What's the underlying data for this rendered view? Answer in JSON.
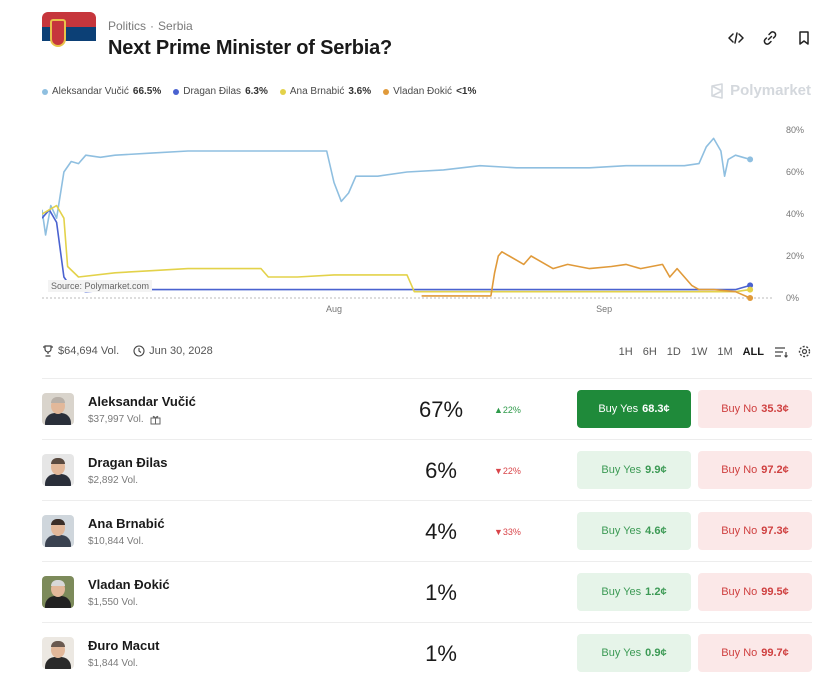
{
  "header": {
    "breadcrumb": [
      "Politics",
      "Serbia"
    ],
    "breadcrumb_separator": "·",
    "title": "Next Prime Minister of Serbia?",
    "icons": [
      "embed-icon",
      "link-icon",
      "bookmark-icon"
    ]
  },
  "legend": [
    {
      "name": "Aleksandar Vučić",
      "pct": "66.5%",
      "color": "#8fbfe0"
    },
    {
      "name": "Dragan Đilas",
      "pct": "6.3%",
      "color": "#4a62d0"
    },
    {
      "name": "Ana Brnabić",
      "pct": "3.6%",
      "color": "#e3d24a"
    },
    {
      "name": "Vladan Đokić",
      "pct": "<1%",
      "color": "#e09a3a"
    }
  ],
  "brand": "Polymarket",
  "chart_data": {
    "type": "line",
    "x_ticks": [
      "Aug",
      "Sep"
    ],
    "y_ticks": [
      "80%",
      "60%",
      "40%",
      "20%",
      "0%"
    ],
    "ylim": [
      0,
      80
    ],
    "source_label": "Source: Polymarket.com",
    "series": [
      {
        "name": "Aleksandar Vučić",
        "color": "#8fbfe0",
        "points": [
          [
            0,
            42
          ],
          [
            0.005,
            30
          ],
          [
            0.012,
            44
          ],
          [
            0.02,
            38
          ],
          [
            0.03,
            60
          ],
          [
            0.04,
            65
          ],
          [
            0.05,
            64
          ],
          [
            0.06,
            68
          ],
          [
            0.08,
            67
          ],
          [
            0.1,
            68
          ],
          [
            0.15,
            69
          ],
          [
            0.2,
            70
          ],
          [
            0.25,
            70
          ],
          [
            0.3,
            70
          ],
          [
            0.35,
            70
          ],
          [
            0.39,
            70
          ],
          [
            0.4,
            55
          ],
          [
            0.41,
            46
          ],
          [
            0.42,
            50
          ],
          [
            0.43,
            58
          ],
          [
            0.46,
            58
          ],
          [
            0.5,
            60
          ],
          [
            0.55,
            61
          ],
          [
            0.6,
            63
          ],
          [
            0.65,
            62
          ],
          [
            0.7,
            62
          ],
          [
            0.75,
            62
          ],
          [
            0.8,
            63
          ],
          [
            0.85,
            63
          ],
          [
            0.88,
            63
          ],
          [
            0.9,
            64
          ],
          [
            0.91,
            72
          ],
          [
            0.92,
            76
          ],
          [
            0.93,
            70
          ],
          [
            0.935,
            58
          ],
          [
            0.94,
            66
          ],
          [
            0.95,
            68
          ],
          [
            0.96,
            67
          ],
          [
            0.97,
            66
          ]
        ]
      },
      {
        "name": "Dragan Đilas",
        "color": "#4a62d0",
        "points": [
          [
            0,
            38
          ],
          [
            0.01,
            42
          ],
          [
            0.02,
            36
          ],
          [
            0.03,
            10
          ],
          [
            0.04,
            5
          ],
          [
            0.06,
            3
          ],
          [
            0.1,
            4
          ],
          [
            0.2,
            4
          ],
          [
            0.3,
            4
          ],
          [
            0.4,
            4
          ],
          [
            0.5,
            4
          ],
          [
            0.6,
            4
          ],
          [
            0.7,
            4
          ],
          [
            0.8,
            4
          ],
          [
            0.9,
            4
          ],
          [
            0.95,
            4
          ],
          [
            0.97,
            6
          ]
        ]
      },
      {
        "name": "Ana Brnabić",
        "color": "#e3d24a",
        "points": [
          [
            0,
            40
          ],
          [
            0.02,
            44
          ],
          [
            0.03,
            38
          ],
          [
            0.035,
            15
          ],
          [
            0.05,
            10
          ],
          [
            0.1,
            12
          ],
          [
            0.15,
            13
          ],
          [
            0.2,
            14
          ],
          [
            0.3,
            14
          ],
          [
            0.31,
            10
          ],
          [
            0.35,
            10
          ],
          [
            0.4,
            11
          ],
          [
            0.5,
            11
          ],
          [
            0.51,
            3
          ],
          [
            0.6,
            3
          ],
          [
            0.7,
            3
          ],
          [
            0.8,
            3
          ],
          [
            0.9,
            3
          ],
          [
            0.95,
            3
          ],
          [
            0.97,
            4
          ]
        ]
      },
      {
        "name": "Vladan Đokić",
        "color": "#e09a3a",
        "points": [
          [
            0.52,
            1
          ],
          [
            0.6,
            1
          ],
          [
            0.615,
            1
          ],
          [
            0.62,
            12
          ],
          [
            0.625,
            20
          ],
          [
            0.63,
            22
          ],
          [
            0.64,
            20
          ],
          [
            0.65,
            18
          ],
          [
            0.66,
            16
          ],
          [
            0.67,
            20
          ],
          [
            0.68,
            18
          ],
          [
            0.7,
            14
          ],
          [
            0.72,
            16
          ],
          [
            0.75,
            14
          ],
          [
            0.78,
            15
          ],
          [
            0.8,
            16
          ],
          [
            0.82,
            14
          ],
          [
            0.85,
            16
          ],
          [
            0.86,
            10
          ],
          [
            0.87,
            14
          ],
          [
            0.88,
            10
          ],
          [
            0.89,
            6
          ],
          [
            0.9,
            4
          ],
          [
            0.92,
            4
          ],
          [
            0.95,
            3
          ],
          [
            0.97,
            0
          ]
        ]
      }
    ]
  },
  "meta": {
    "volume": "$64,694 Vol.",
    "end_date": "Jun 30, 2028"
  },
  "ranges": [
    "1H",
    "6H",
    "1D",
    "1W",
    "1M",
    "ALL"
  ],
  "active_range": "ALL",
  "candidates": [
    {
      "name": "Aleksandar Vučić",
      "volume": "$37,997 Vol.",
      "prob": "67%",
      "change": "▲22%",
      "dir": "up",
      "yes_label": "Buy Yes",
      "yes_price": "68.3¢",
      "no_label": "Buy No",
      "no_price": "35.3¢",
      "primary": true
    },
    {
      "name": "Dragan Đilas",
      "volume": "$2,892 Vol.",
      "prob": "6%",
      "change": "▼22%",
      "dir": "down",
      "yes_label": "Buy Yes",
      "yes_price": "9.9¢",
      "no_label": "Buy No",
      "no_price": "97.2¢",
      "primary": false
    },
    {
      "name": "Ana Brnabić",
      "volume": "$10,844 Vol.",
      "prob": "4%",
      "change": "▼33%",
      "dir": "down",
      "yes_label": "Buy Yes",
      "yes_price": "4.6¢",
      "no_label": "Buy No",
      "no_price": "97.3¢",
      "primary": false
    },
    {
      "name": "Vladan Đokić",
      "volume": "$1,550 Vol.",
      "prob": "1%",
      "change": "",
      "dir": "",
      "yes_label": "Buy Yes",
      "yes_price": "1.2¢",
      "no_label": "Buy No",
      "no_price": "99.5¢",
      "primary": false
    },
    {
      "name": "Đuro Macut",
      "volume": "$1,844 Vol.",
      "prob": "1%",
      "change": "",
      "dir": "",
      "yes_label": "Buy Yes",
      "yes_price": "0.9¢",
      "no_label": "Buy No",
      "no_price": "99.7¢",
      "primary": false
    }
  ]
}
